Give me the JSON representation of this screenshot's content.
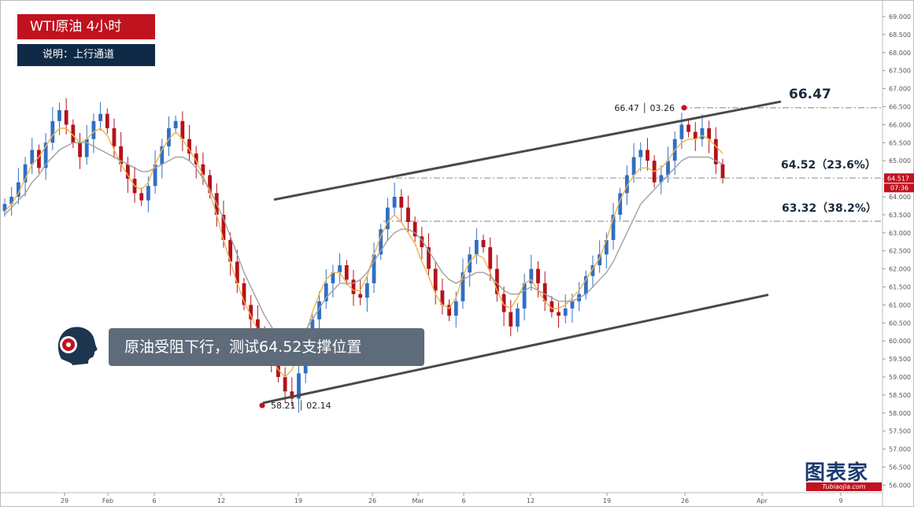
{
  "header": {
    "title": "WTI原油  4小时",
    "subtitle": "说明：上行通道"
  },
  "callout": {
    "text": "原油受阻下行，测试64.52支撑位置"
  },
  "logo": {
    "main": "图表家",
    "sub": "Tubiaojia.com"
  },
  "colors": {
    "up": "#2f6fc4",
    "down": "#b5121b",
    "ma_fast": "#f0b24a",
    "ma_slow": "#a0a0a0",
    "channel": "#4a4a4a",
    "level": "#9a9a9a",
    "title_bg": "#c1121f",
    "subtitle_bg": "#0f2a47",
    "callout_bg": "#5e6b7b"
  },
  "chart_data": {
    "type": "candlestick",
    "symbol": "WTI原油",
    "timeframe": "4小时",
    "ylim": [
      56.0,
      69.0
    ],
    "y_ticks": [
      "69.000",
      "68.500",
      "68.000",
      "67.500",
      "67.000",
      "66.500",
      "66.000",
      "65.500",
      "65.000",
      "64.500",
      "64.000",
      "63.500",
      "63.000",
      "62.500",
      "62.000",
      "61.500",
      "61.000",
      "60.500",
      "60.000",
      "59.500",
      "59.000",
      "58.500",
      "58.000",
      "57.500",
      "57.000",
      "56.500",
      "56.000"
    ],
    "x_ticks": [
      "29",
      "Feb",
      "6",
      "12",
      "19",
      "26",
      "Mar",
      "6",
      "12",
      "19",
      "26",
      "Apr",
      "9"
    ],
    "current_price": "64.517",
    "current_time": "07:36",
    "annotations": {
      "high": {
        "price": 66.47,
        "label": "66.47 │ 03.26"
      },
      "low": {
        "price": 58.21,
        "label": "58.21 │ 02.14"
      }
    },
    "levels": [
      {
        "price": 66.47,
        "label": "66.47"
      },
      {
        "price": 64.52,
        "label": "64.52（23.6%）"
      },
      {
        "price": 63.32,
        "label": "63.32（38.2%）"
      }
    ],
    "channel": {
      "upper": [
        [
          63.92,
          "02.19"
        ],
        [
          66.64,
          "03.30"
        ]
      ],
      "lower": [
        [
          58.28,
          "02.14"
        ],
        [
          61.28,
          "04.04"
        ]
      ]
    },
    "series": [
      {
        "name": "price",
        "values": [
          63.8,
          64.0,
          64.4,
          64.9,
          65.3,
          64.8,
          65.5,
          66.1,
          66.4,
          66.0,
          65.5,
          65.1,
          65.6,
          66.1,
          66.3,
          65.9,
          65.4,
          64.9,
          64.5,
          64.1,
          63.9,
          64.3,
          64.9,
          65.4,
          65.9,
          66.1,
          65.6,
          65.2,
          64.9,
          64.6,
          64.1,
          63.5,
          62.8,
          62.2,
          61.6,
          61.0,
          60.6,
          60.2,
          59.8,
          59.4,
          59.0,
          58.6,
          58.4,
          59.1,
          59.9,
          60.6,
          61.1,
          61.6,
          61.9,
          62.1,
          61.7,
          61.3,
          61.2,
          61.6,
          62.4,
          63.1,
          63.7,
          64.0,
          63.7,
          63.3,
          62.9,
          62.6,
          62.0,
          61.4,
          61.0,
          60.7,
          61.1,
          61.9,
          62.4,
          62.8,
          62.6,
          62.0,
          61.3,
          60.8,
          60.4,
          60.9,
          61.6,
          62.0,
          61.6,
          61.1,
          60.8,
          60.7,
          60.9,
          61.1,
          61.3,
          61.8,
          62.1,
          62.4,
          62.8,
          63.5,
          64.1,
          64.6,
          65.1,
          65.3,
          65.0,
          64.4,
          64.6,
          65.0,
          65.6,
          66.0,
          65.8,
          65.6,
          65.9,
          65.6,
          64.9,
          64.52
        ]
      },
      {
        "name": "ma_fast",
        "values": [
          63.6,
          63.8,
          64.1,
          64.5,
          64.9,
          65.1,
          65.4,
          65.7,
          65.9,
          65.9,
          65.7,
          65.5,
          65.6,
          65.8,
          65.9,
          65.7,
          65.3,
          64.9,
          64.6,
          64.3,
          64.2,
          64.4,
          64.9,
          65.3,
          65.6,
          65.8,
          65.6,
          65.3,
          65.0,
          64.6,
          64.1,
          63.5,
          62.8,
          62.2,
          61.6,
          61.1,
          60.7,
          60.3,
          59.9,
          59.5,
          59.2,
          59.0,
          59.2,
          59.6,
          60.2,
          60.8,
          61.3,
          61.7,
          61.9,
          61.9,
          61.6,
          61.4,
          61.4,
          61.8,
          62.4,
          62.9,
          63.3,
          63.5,
          63.3,
          63.0,
          62.7,
          62.2,
          61.8,
          61.3,
          61.0,
          60.9,
          61.2,
          61.8,
          62.2,
          62.4,
          62.3,
          61.9,
          61.4,
          61.0,
          60.9,
          61.2,
          61.6,
          61.7,
          61.4,
          61.1,
          60.9,
          60.9,
          61.0,
          61.2,
          61.4,
          61.7,
          62.0,
          62.3,
          62.8,
          63.4,
          63.9,
          64.3,
          64.6,
          64.8,
          64.8,
          64.7,
          64.8,
          65.0,
          65.3,
          65.5,
          65.6,
          65.6,
          65.7,
          65.6,
          65.4,
          65.2
        ]
      },
      {
        "name": "ma_slow",
        "values": [
          63.5,
          63.7,
          63.9,
          64.1,
          64.4,
          64.6,
          64.9,
          65.1,
          65.3,
          65.4,
          65.5,
          65.5,
          65.5,
          65.4,
          65.3,
          65.2,
          65.1,
          65.0,
          64.9,
          64.8,
          64.7,
          64.7,
          64.8,
          64.9,
          65.0,
          65.1,
          65.1,
          65.0,
          64.8,
          64.5,
          64.2,
          63.8,
          63.4,
          62.9,
          62.4,
          61.9,
          61.5,
          61.1,
          60.7,
          60.4,
          60.1,
          59.9,
          59.9,
          60.0,
          60.3,
          60.6,
          60.9,
          61.2,
          61.4,
          61.6,
          61.6,
          61.6,
          61.7,
          61.9,
          62.2,
          62.5,
          62.8,
          63.0,
          63.1,
          63.1,
          63.0,
          62.8,
          62.5,
          62.2,
          61.9,
          61.7,
          61.6,
          61.7,
          61.8,
          61.9,
          61.9,
          61.8,
          61.6,
          61.4,
          61.3,
          61.3,
          61.4,
          61.5,
          61.4,
          61.3,
          61.2,
          61.1,
          61.1,
          61.1,
          61.2,
          61.3,
          61.5,
          61.7,
          61.9,
          62.2,
          62.6,
          63.0,
          63.4,
          63.8,
          64.0,
          64.2,
          64.4,
          64.6,
          64.8,
          65.0,
          65.1,
          65.1,
          65.1,
          65.1,
          65.0,
          64.9
        ]
      }
    ],
    "grid": false,
    "legend": "none"
  }
}
